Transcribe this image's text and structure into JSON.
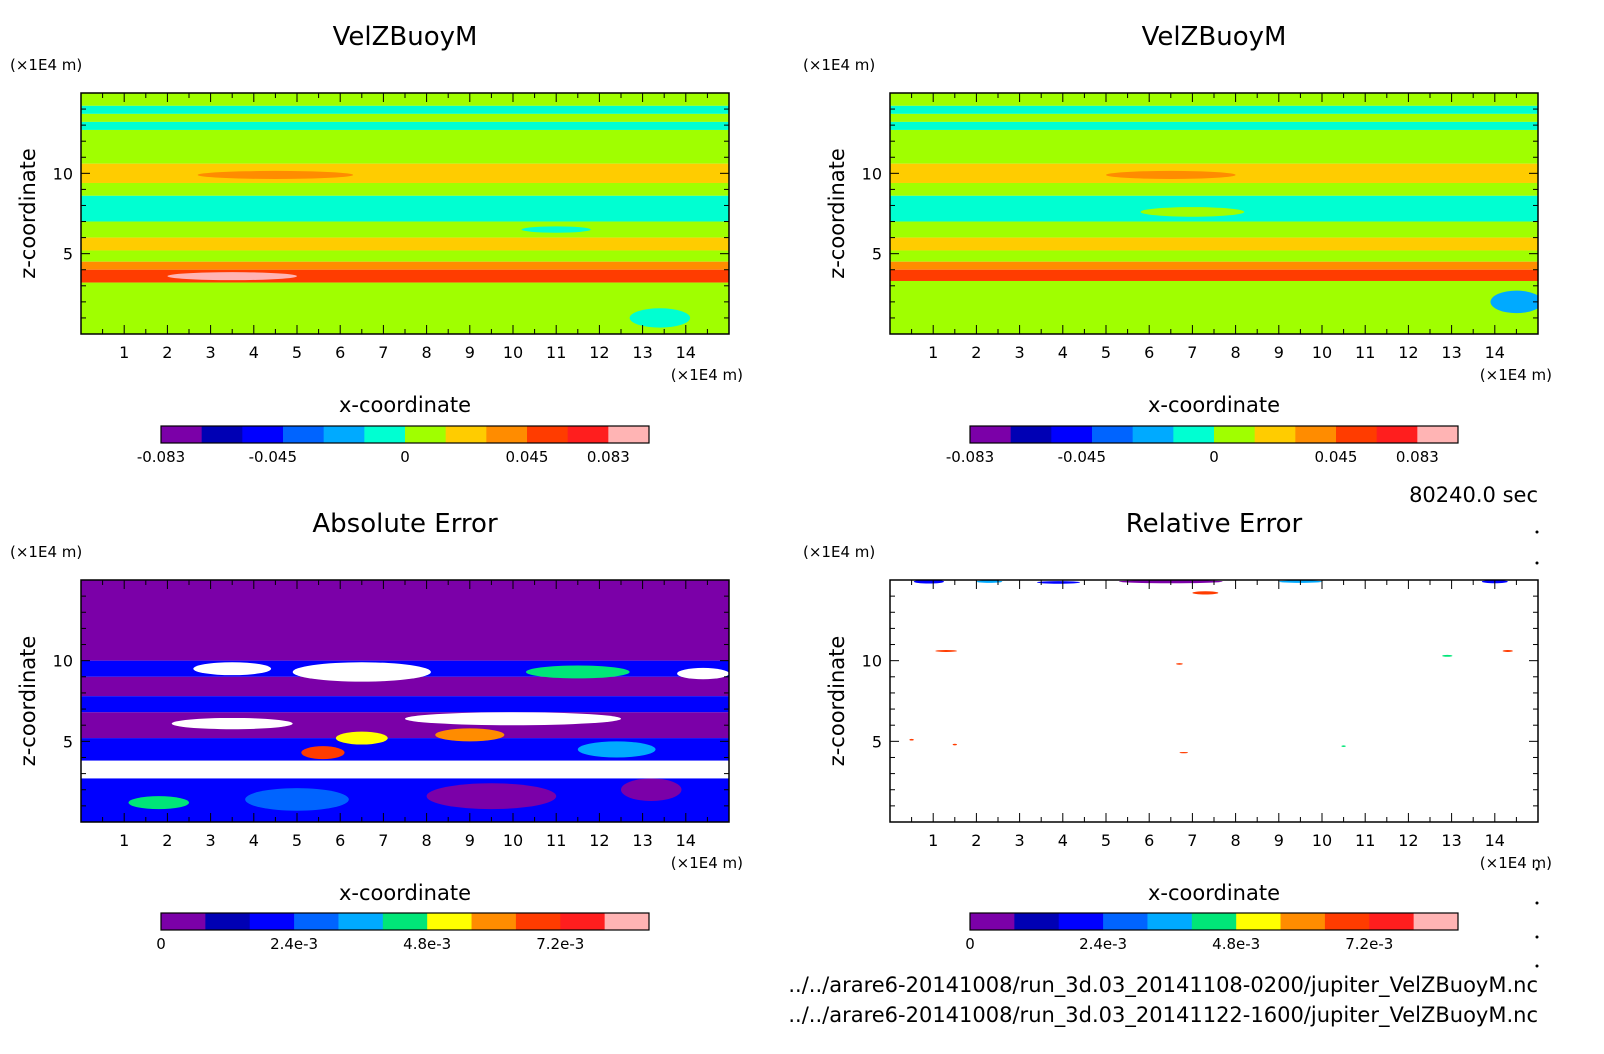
{
  "time_label": "80240.0 sec",
  "files": [
    "../../arare6-20141008/run_3d.03_20141108-0200/jupiter_VelZBuoyM.nc",
    "../../arare6-20141008/run_3d.03_20141122-1600/jupiter_VelZBuoyM.nc"
  ],
  "chart_data": [
    {
      "type": "heatmap",
      "title": "VelZBuoyM",
      "xlabel": "x-coordinate",
      "ylabel": "z-coordinate",
      "x_unit": "(×1E4 m)",
      "y_unit": "(×1E4 m)",
      "x_ticks": [
        "1",
        "2",
        "3",
        "4",
        "5",
        "6",
        "7",
        "8",
        "9",
        "10",
        "11",
        "12",
        "13",
        "14"
      ],
      "y_ticks": [
        "5",
        "10"
      ],
      "xlim": [
        0,
        15
      ],
      "ylim": [
        0,
        15
      ],
      "colorbar": {
        "colors": [
          "#7b00a8",
          "#0000b4",
          "#0000ff",
          "#0064ff",
          "#00aaff",
          "#00ffd2",
          "#a0ff00",
          "#ffcc00",
          "#ff8c00",
          "#ff3c00",
          "#ff1e1e",
          "#ffb4b4"
        ],
        "labels": [
          "-0.083",
          "-0.045",
          "0",
          "0.045",
          "0.083"
        ],
        "label_positions": [
          0,
          2.75,
          6,
          9,
          11
        ]
      },
      "bands": [
        {
          "z0": 14.2,
          "z1": 15.0,
          "color": "#a0ff00"
        },
        {
          "z0": 13.7,
          "z1": 14.2,
          "color": "#00ffd2"
        },
        {
          "z0": 13.2,
          "z1": 13.7,
          "color": "#a0ff00"
        },
        {
          "z0": 12.7,
          "z1": 13.2,
          "color": "#00ffd2"
        },
        {
          "z0": 10.6,
          "z1": 12.7,
          "color": "#a0ff00"
        },
        {
          "z0": 9.4,
          "z1": 10.6,
          "color": "#ffcc00"
        },
        {
          "z0": 8.6,
          "z1": 9.4,
          "color": "#a0ff00"
        },
        {
          "z0": 7.0,
          "z1": 8.6,
          "color": "#00ffd2"
        },
        {
          "z0": 6.0,
          "z1": 7.0,
          "color": "#a0ff00"
        },
        {
          "z0": 5.2,
          "z1": 6.0,
          "color": "#ffcc00"
        },
        {
          "z0": 4.5,
          "z1": 5.2,
          "color": "#a0ff00"
        },
        {
          "z0": 4.0,
          "z1": 4.5,
          "color": "#ff8c00"
        },
        {
          "z0": 3.2,
          "z1": 4.0,
          "color": "#ff3c00"
        },
        {
          "z0": 0.0,
          "z1": 3.2,
          "color": "#a0ff00"
        }
      ],
      "blobs": [
        {
          "x": 3.5,
          "z": 3.6,
          "rx": 1.5,
          "rz": 0.25,
          "color": "#ffb4b4"
        },
        {
          "x": 13.4,
          "z": 1.0,
          "rx": 0.7,
          "rz": 0.6,
          "color": "#00ffd2"
        },
        {
          "x": 4.5,
          "z": 9.9,
          "rx": 1.8,
          "rz": 0.25,
          "color": "#ff8c00"
        },
        {
          "x": 11.0,
          "z": 6.5,
          "rx": 0.8,
          "rz": 0.2,
          "color": "#00ffd2"
        }
      ]
    },
    {
      "type": "heatmap",
      "title": "VelZBuoyM",
      "xlabel": "x-coordinate",
      "ylabel": "z-coordinate",
      "x_unit": "(×1E4 m)",
      "y_unit": "(×1E4 m)",
      "x_ticks": [
        "1",
        "2",
        "3",
        "4",
        "5",
        "6",
        "7",
        "8",
        "9",
        "10",
        "11",
        "12",
        "13",
        "14"
      ],
      "y_ticks": [
        "5",
        "10"
      ],
      "xlim": [
        0,
        15
      ],
      "ylim": [
        0,
        15
      ],
      "colorbar": {
        "colors": [
          "#7b00a8",
          "#0000b4",
          "#0000ff",
          "#0064ff",
          "#00aaff",
          "#00ffd2",
          "#a0ff00",
          "#ffcc00",
          "#ff8c00",
          "#ff3c00",
          "#ff1e1e",
          "#ffb4b4"
        ],
        "labels": [
          "-0.083",
          "-0.045",
          "0",
          "0.045",
          "0.083"
        ],
        "label_positions": [
          0,
          2.75,
          6,
          9,
          11
        ]
      },
      "bands": [
        {
          "z0": 14.2,
          "z1": 15.0,
          "color": "#a0ff00"
        },
        {
          "z0": 13.7,
          "z1": 14.2,
          "color": "#00ffd2"
        },
        {
          "z0": 13.2,
          "z1": 13.7,
          "color": "#a0ff00"
        },
        {
          "z0": 12.7,
          "z1": 13.2,
          "color": "#00ffd2"
        },
        {
          "z0": 10.6,
          "z1": 12.7,
          "color": "#a0ff00"
        },
        {
          "z0": 9.4,
          "z1": 10.6,
          "color": "#ffcc00"
        },
        {
          "z0": 8.6,
          "z1": 9.4,
          "color": "#a0ff00"
        },
        {
          "z0": 7.0,
          "z1": 8.6,
          "color": "#00ffd2"
        },
        {
          "z0": 6.0,
          "z1": 7.0,
          "color": "#a0ff00"
        },
        {
          "z0": 5.2,
          "z1": 6.0,
          "color": "#ffcc00"
        },
        {
          "z0": 4.5,
          "z1": 5.2,
          "color": "#a0ff00"
        },
        {
          "z0": 4.0,
          "z1": 4.5,
          "color": "#ff8c00"
        },
        {
          "z0": 3.3,
          "z1": 4.0,
          "color": "#ff3c00"
        },
        {
          "z0": 0.0,
          "z1": 3.3,
          "color": "#a0ff00"
        }
      ],
      "blobs": [
        {
          "x": 14.5,
          "z": 2.0,
          "rx": 0.6,
          "rz": 0.7,
          "color": "#00aaff"
        },
        {
          "x": 7.0,
          "z": 7.6,
          "rx": 1.2,
          "rz": 0.3,
          "color": "#a0ff00"
        },
        {
          "x": 6.5,
          "z": 9.9,
          "rx": 1.5,
          "rz": 0.25,
          "color": "#ff8c00"
        }
      ]
    },
    {
      "type": "heatmap",
      "title": "Absolute Error",
      "xlabel": "x-coordinate",
      "ylabel": "z-coordinate",
      "x_unit": "(×1E4 m)",
      "y_unit": "(×1E4 m)",
      "x_ticks": [
        "1",
        "2",
        "3",
        "4",
        "5",
        "6",
        "7",
        "8",
        "9",
        "10",
        "11",
        "12",
        "13",
        "14"
      ],
      "y_ticks": [
        "5",
        "10"
      ],
      "xlim": [
        0,
        15
      ],
      "ylim": [
        0,
        15
      ],
      "colorbar": {
        "colors": [
          "#7b00a8",
          "#0000b4",
          "#0000ff",
          "#0064ff",
          "#00aaff",
          "#00e678",
          "#ffff00",
          "#ff8c00",
          "#ff3c00",
          "#ff1e1e",
          "#ffb4b4"
        ],
        "labels": [
          "0",
          "2.4e-3",
          "4.8e-3",
          "7.2e-3"
        ],
        "label_positions": [
          0,
          3,
          6,
          9
        ]
      },
      "bands": [
        {
          "z0": 10.0,
          "z1": 15.0,
          "color": "#7b00a8"
        },
        {
          "z0": 9.0,
          "z1": 10.0,
          "color": "#0000ff"
        },
        {
          "z0": 7.8,
          "z1": 9.0,
          "color": "#7b00a8"
        },
        {
          "z0": 6.8,
          "z1": 7.8,
          "color": "#0000ff"
        },
        {
          "z0": 5.2,
          "z1": 6.8,
          "color": "#7b00a8"
        },
        {
          "z0": 3.8,
          "z1": 5.2,
          "color": "#0000ff"
        },
        {
          "z0": 2.7,
          "z1": 3.8,
          "color": "#ffffff"
        },
        {
          "z0": 0.0,
          "z1": 2.7,
          "color": "#0000ff"
        }
      ],
      "blobs": [
        {
          "x": 6.5,
          "z": 9.3,
          "rx": 1.6,
          "rz": 0.6,
          "color": "#ffffff"
        },
        {
          "x": 3.5,
          "z": 9.5,
          "rx": 0.9,
          "rz": 0.4,
          "color": "#ffffff"
        },
        {
          "x": 11.5,
          "z": 9.3,
          "rx": 1.2,
          "rz": 0.4,
          "color": "#00e678"
        },
        {
          "x": 14.4,
          "z": 9.2,
          "rx": 0.6,
          "rz": 0.35,
          "color": "#ffffff"
        },
        {
          "x": 3.5,
          "z": 6.1,
          "rx": 1.4,
          "rz": 0.35,
          "color": "#ffffff"
        },
        {
          "x": 10.0,
          "z": 6.4,
          "rx": 2.5,
          "rz": 0.4,
          "color": "#ffffff"
        },
        {
          "x": 6.5,
          "z": 5.2,
          "rx": 0.6,
          "rz": 0.4,
          "color": "#ffff00"
        },
        {
          "x": 5.6,
          "z": 4.3,
          "rx": 0.5,
          "rz": 0.4,
          "color": "#ff3c00"
        },
        {
          "x": 9.0,
          "z": 5.4,
          "rx": 0.8,
          "rz": 0.4,
          "color": "#ff8c00"
        },
        {
          "x": 12.4,
          "z": 4.5,
          "rx": 0.9,
          "rz": 0.5,
          "color": "#00aaff"
        },
        {
          "x": 1.8,
          "z": 1.2,
          "rx": 0.7,
          "rz": 0.4,
          "color": "#00e678"
        },
        {
          "x": 5.0,
          "z": 1.4,
          "rx": 1.2,
          "rz": 0.7,
          "color": "#0064ff"
        },
        {
          "x": 9.5,
          "z": 1.6,
          "rx": 1.5,
          "rz": 0.8,
          "color": "#7b00a8"
        },
        {
          "x": 13.2,
          "z": 2.0,
          "rx": 0.7,
          "rz": 0.7,
          "color": "#7b00a8"
        }
      ]
    },
    {
      "type": "heatmap",
      "title": "Relative Error",
      "xlabel": "x-coordinate",
      "ylabel": "z-coordinate",
      "x_unit": "(×1E4 m)",
      "y_unit": "(×1E4 m)",
      "x_ticks": [
        "1",
        "2",
        "3",
        "4",
        "5",
        "6",
        "7",
        "8",
        "9",
        "10",
        "11",
        "12",
        "13",
        "14"
      ],
      "y_ticks": [
        "5",
        "10"
      ],
      "xlim": [
        0,
        15
      ],
      "ylim": [
        0,
        15
      ],
      "colorbar": {
        "colors": [
          "#7b00a8",
          "#0000b4",
          "#0000ff",
          "#0064ff",
          "#00aaff",
          "#00e678",
          "#ffff00",
          "#ff8c00",
          "#ff3c00",
          "#ff1e1e",
          "#ffb4b4"
        ],
        "labels": [
          "0",
          "2.4e-3",
          "4.8e-3",
          "7.2e-3"
        ],
        "label_positions": [
          0,
          3,
          6,
          9
        ]
      },
      "bands": [
        {
          "z0": 0.0,
          "z1": 15.0,
          "color": "#ffffff"
        }
      ],
      "blobs": [
        {
          "x": 0.9,
          "z": 14.9,
          "rx": 0.35,
          "rz": 0.12,
          "color": "#0000ff"
        },
        {
          "x": 2.3,
          "z": 14.9,
          "rx": 0.3,
          "rz": 0.08,
          "color": "#00aaff"
        },
        {
          "x": 3.9,
          "z": 14.85,
          "rx": 0.5,
          "rz": 0.08,
          "color": "#0000ff"
        },
        {
          "x": 6.5,
          "z": 14.9,
          "rx": 1.2,
          "rz": 0.1,
          "color": "#7b00a8"
        },
        {
          "x": 7.3,
          "z": 14.2,
          "rx": 0.3,
          "rz": 0.1,
          "color": "#ff3c00"
        },
        {
          "x": 9.5,
          "z": 14.9,
          "rx": 0.5,
          "rz": 0.08,
          "color": "#00aaff"
        },
        {
          "x": 14.0,
          "z": 14.9,
          "rx": 0.3,
          "rz": 0.1,
          "color": "#0000ff"
        },
        {
          "x": 1.3,
          "z": 10.6,
          "rx": 0.25,
          "rz": 0.06,
          "color": "#ff3c00"
        },
        {
          "x": 14.3,
          "z": 10.6,
          "rx": 0.12,
          "rz": 0.06,
          "color": "#ff3c00"
        },
        {
          "x": 12.9,
          "z": 10.3,
          "rx": 0.12,
          "rz": 0.06,
          "color": "#00e678"
        },
        {
          "x": 6.7,
          "z": 9.8,
          "rx": 0.08,
          "rz": 0.05,
          "color": "#ff3c00"
        },
        {
          "x": 0.5,
          "z": 5.1,
          "rx": 0.05,
          "rz": 0.05,
          "color": "#ff3c00"
        },
        {
          "x": 1.5,
          "z": 4.8,
          "rx": 0.05,
          "rz": 0.05,
          "color": "#ff3c00"
        },
        {
          "x": 6.8,
          "z": 4.3,
          "rx": 0.1,
          "rz": 0.04,
          "color": "#ff3c00"
        },
        {
          "x": 10.5,
          "z": 4.7,
          "rx": 0.05,
          "rz": 0.05,
          "color": "#00e678"
        }
      ]
    }
  ]
}
